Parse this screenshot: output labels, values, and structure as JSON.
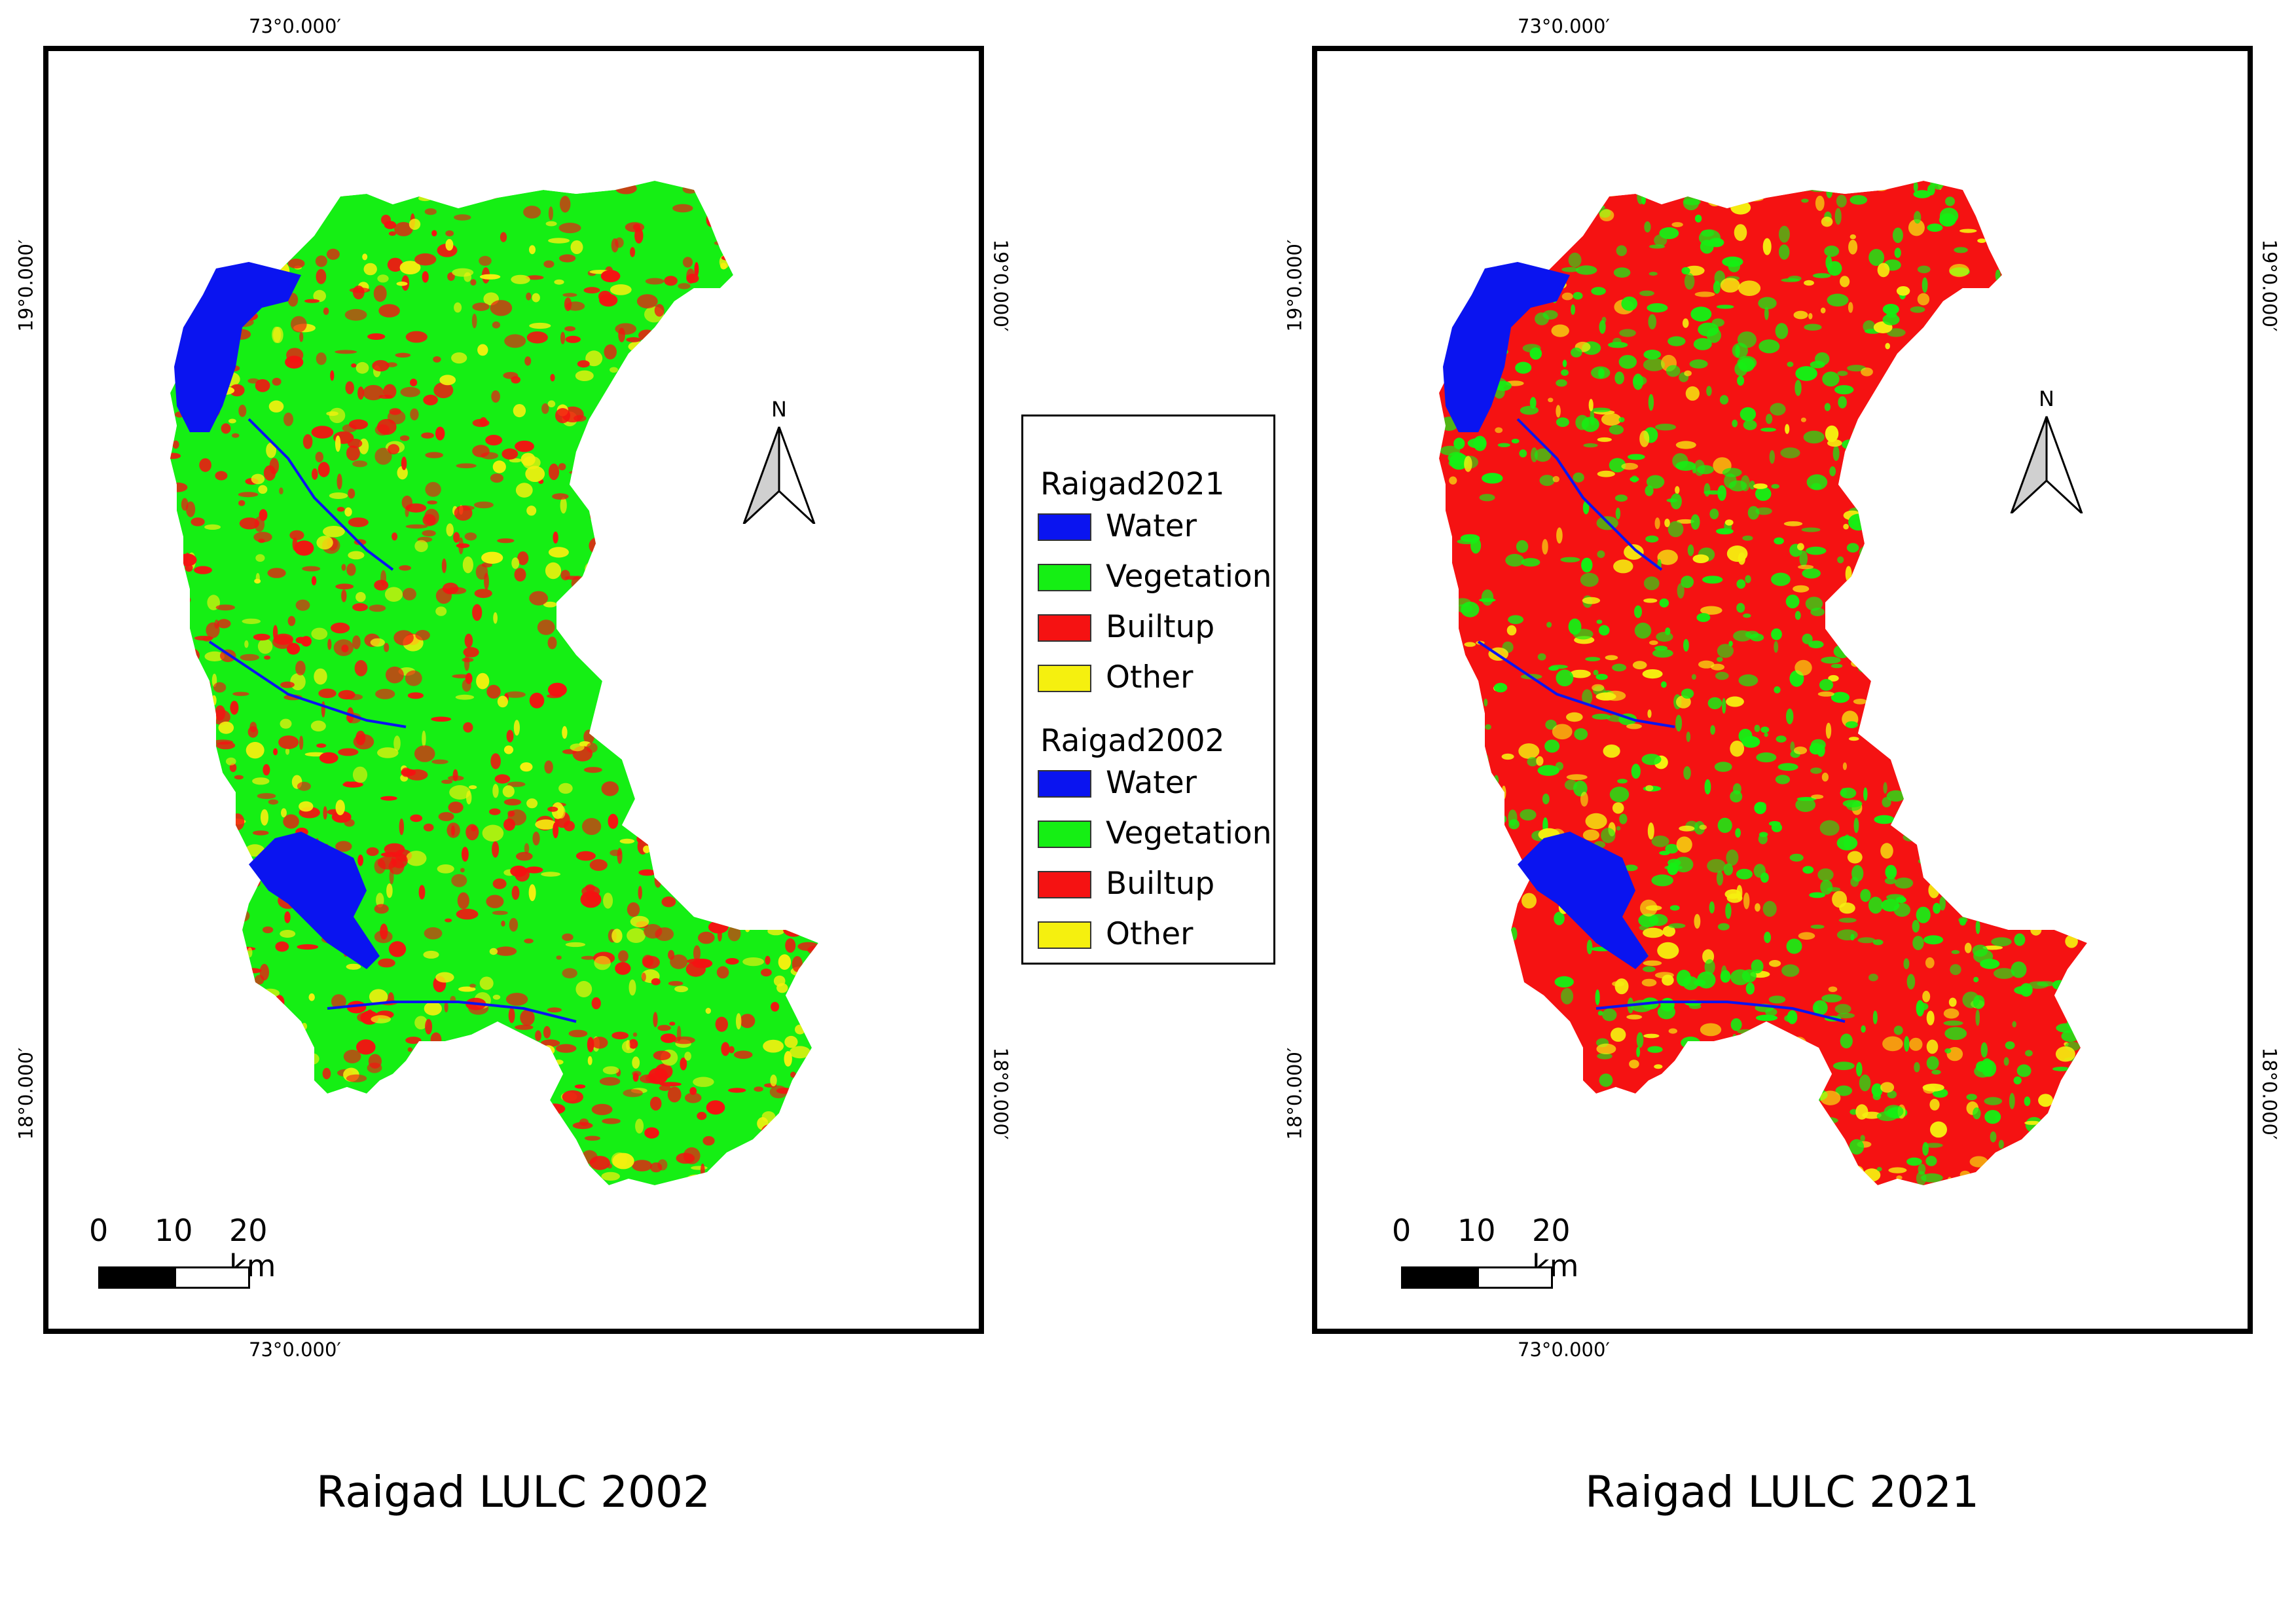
{
  "colors": {
    "water": "#0a14f0",
    "vegetation": "#15ef14",
    "builtup": "#f51212",
    "other": "#f5f00f",
    "frame": "#000000"
  },
  "maps": [
    {
      "caption": "Raigad LULC 2002",
      "lon_label": "73°0.000′",
      "lat_upper": "19°0.000′",
      "lat_lower": "18°0.000′",
      "north_label": "N",
      "scale_labels": [
        "0",
        "10",
        "20 km"
      ],
      "dominant_class": "vegetation",
      "accent_class": "builtup"
    },
    {
      "caption": "Raigad LULC 2021",
      "lon_label": "73°0.000′",
      "lat_upper": "19°0.000′",
      "lat_lower": "18°0.000′",
      "north_label": "N",
      "scale_labels": [
        "0",
        "10",
        "20 km"
      ],
      "dominant_class": "builtup",
      "accent_class": "vegetation"
    }
  ],
  "legend": {
    "groups": [
      {
        "title": "Raigad2021",
        "items": [
          "Water",
          "Vegetation",
          "Builtup",
          "Other"
        ]
      },
      {
        "title": "Raigad2002",
        "items": [
          "Water",
          "Vegetation",
          "Builtup",
          "Other"
        ]
      }
    ]
  }
}
